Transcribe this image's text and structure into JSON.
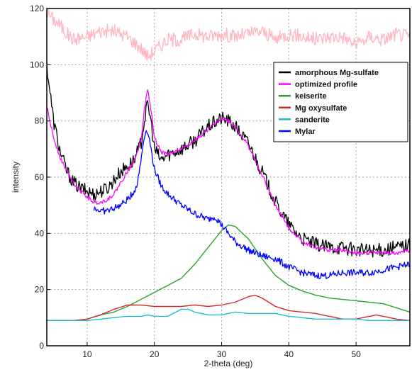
{
  "chart_data": {
    "type": "line",
    "xlabel": "2-theta (deg)",
    "ylabel": "intensity",
    "xlim": [
      4,
      58
    ],
    "ylim": [
      0,
      120
    ],
    "x_ticks": [
      10,
      20,
      30,
      40,
      50
    ],
    "y_ticks": [
      0,
      20,
      40,
      60,
      80,
      100,
      120
    ],
    "grid": true,
    "legend_position": "upper-right",
    "legend": [
      {
        "label": "amorphous Mg-sulfate",
        "color": "#000000"
      },
      {
        "label": "optimized profile",
        "color": "#ff00ff"
      },
      {
        "label": "keiserite",
        "color": "#2ca02c"
      },
      {
        "label": "Mg oxysulfate",
        "color": "#d62728"
      },
      {
        "label": "sanderite",
        "color": "#17becf"
      },
      {
        "label": "Mylar",
        "color": "#0000ff"
      }
    ],
    "series": [
      {
        "color": "#ffb6c1",
        "noise": 2.5,
        "x": [
          4,
          5,
          6,
          7,
          8,
          10,
          12,
          14,
          16,
          18,
          19,
          20,
          22,
          24,
          26,
          28,
          30,
          32,
          34,
          36,
          38,
          40,
          42,
          44,
          46,
          48,
          50,
          52,
          54,
          56,
          58
        ],
        "y": [
          119,
          116,
          114,
          111,
          109,
          110,
          112,
          112,
          110,
          106,
          103,
          105,
          109,
          109,
          111,
          110,
          111,
          110,
          111,
          112,
          109,
          111,
          110,
          109,
          110,
          110,
          107,
          110,
          109,
          111,
          110
        ]
      },
      {
        "name": "amorphous Mg-sulfate",
        "color": "#000000",
        "noise": 2.5,
        "x": [
          4,
          5,
          6,
          7,
          8,
          9,
          10,
          11,
          12,
          13,
          14,
          15,
          16,
          17,
          18,
          18.5,
          19,
          19.5,
          20,
          21,
          22,
          24,
          26,
          28,
          30,
          31,
          32,
          34,
          36,
          38,
          40,
          42,
          44,
          46,
          48,
          50,
          52,
          54,
          56,
          58
        ],
        "y": [
          100,
          80,
          69,
          62,
          58,
          56,
          55,
          54,
          55,
          56,
          59,
          62,
          64,
          66,
          72,
          80,
          86,
          80,
          70,
          66,
          68,
          70,
          73,
          78,
          81,
          80,
          78,
          72,
          62,
          51,
          43,
          38,
          36,
          35,
          35,
          34,
          34,
          34,
          35,
          36
        ]
      },
      {
        "name": "optimized profile",
        "color": "#ff00ff",
        "noise": 0.7,
        "x": [
          4,
          5,
          6,
          7,
          8,
          9,
          10,
          11,
          12,
          13,
          14,
          15,
          16,
          17,
          18,
          18.5,
          19,
          19.5,
          20,
          21,
          22,
          24,
          26,
          28,
          30,
          31,
          32,
          34,
          36,
          38,
          40,
          42,
          44,
          46,
          48,
          50,
          52,
          54,
          56,
          58
        ],
        "y": [
          85,
          74,
          67,
          62,
          58,
          55,
          53,
          51,
          51,
          52,
          54,
          58,
          62,
          66,
          73,
          84,
          91,
          84,
          74,
          69,
          68,
          70,
          73,
          77,
          81,
          80,
          78,
          71,
          61,
          50,
          42,
          37,
          35,
          34,
          34,
          33,
          33,
          33,
          33,
          34
        ]
      },
      {
        "name": "keiserite",
        "color": "#2ca02c",
        "noise": 0,
        "x": [
          4,
          6,
          8,
          10,
          12,
          14,
          16,
          18,
          20,
          22,
          24,
          26,
          28,
          30,
          31,
          32,
          34,
          36,
          38,
          40,
          42,
          44,
          46,
          48,
          50,
          52,
          54,
          56,
          58
        ],
        "y": [
          9,
          9,
          9,
          9.5,
          11,
          12,
          14,
          16.5,
          19,
          21.5,
          24,
          29,
          35,
          41,
          43,
          42.5,
          38,
          31,
          25,
          21.5,
          19.5,
          18,
          17,
          16.5,
          16,
          15.5,
          15,
          13.5,
          12
        ]
      },
      {
        "name": "Mg oxysulfate",
        "color": "#d62728",
        "noise": 0,
        "x": [
          4,
          6,
          8,
          10,
          12,
          14,
          16,
          18,
          20,
          22,
          24,
          26,
          28,
          30,
          32,
          34,
          35,
          36,
          38,
          40,
          42,
          44,
          46,
          48,
          50,
          52,
          53,
          54,
          56,
          58
        ],
        "y": [
          9,
          9,
          9,
          9.5,
          11,
          13,
          14.5,
          14.5,
          14,
          14,
          14,
          14.5,
          14,
          14.5,
          15.5,
          17.5,
          18,
          17,
          14,
          12.5,
          12,
          11.5,
          10.5,
          9.5,
          9.5,
          10.5,
          11,
          10.5,
          9.5,
          9
        ]
      },
      {
        "name": "sanderite",
        "color": "#17becf",
        "noise": 0,
        "x": [
          4,
          6,
          8,
          10,
          12,
          14,
          16,
          18,
          19,
          20,
          22,
          24,
          25,
          26,
          28,
          30,
          32,
          34,
          36,
          38,
          40,
          42,
          44,
          46,
          48,
          50,
          52,
          54,
          56,
          58
        ],
        "y": [
          9,
          9,
          9,
          9,
          9.5,
          10,
          10.5,
          10.5,
          11,
          10.5,
          10.5,
          13,
          13,
          12,
          11,
          11,
          12,
          11.5,
          11.5,
          11.5,
          10.5,
          10,
          9.5,
          9.5,
          9.5,
          9.5,
          9,
          9,
          9,
          9
        ]
      },
      {
        "name": "Mylar",
        "color": "#0000ff",
        "noise": 1.2,
        "x": [
          11,
          12,
          13,
          14,
          15,
          16,
          17,
          17.5,
          18,
          18.5,
          19,
          19.5,
          20,
          21,
          22,
          24,
          26,
          28,
          29,
          30,
          31,
          32,
          34,
          36,
          38,
          40,
          42,
          44,
          46,
          48,
          50,
          52,
          54,
          56,
          58
        ],
        "y": [
          49,
          48,
          48,
          49,
          50,
          52,
          55,
          58,
          66,
          75,
          77,
          70,
          63,
          57,
          54,
          50,
          47,
          45,
          46,
          43,
          40,
          37,
          34,
          32,
          31,
          28,
          26,
          25,
          25,
          26,
          26,
          26,
          27,
          28,
          29
        ]
      }
    ]
  }
}
